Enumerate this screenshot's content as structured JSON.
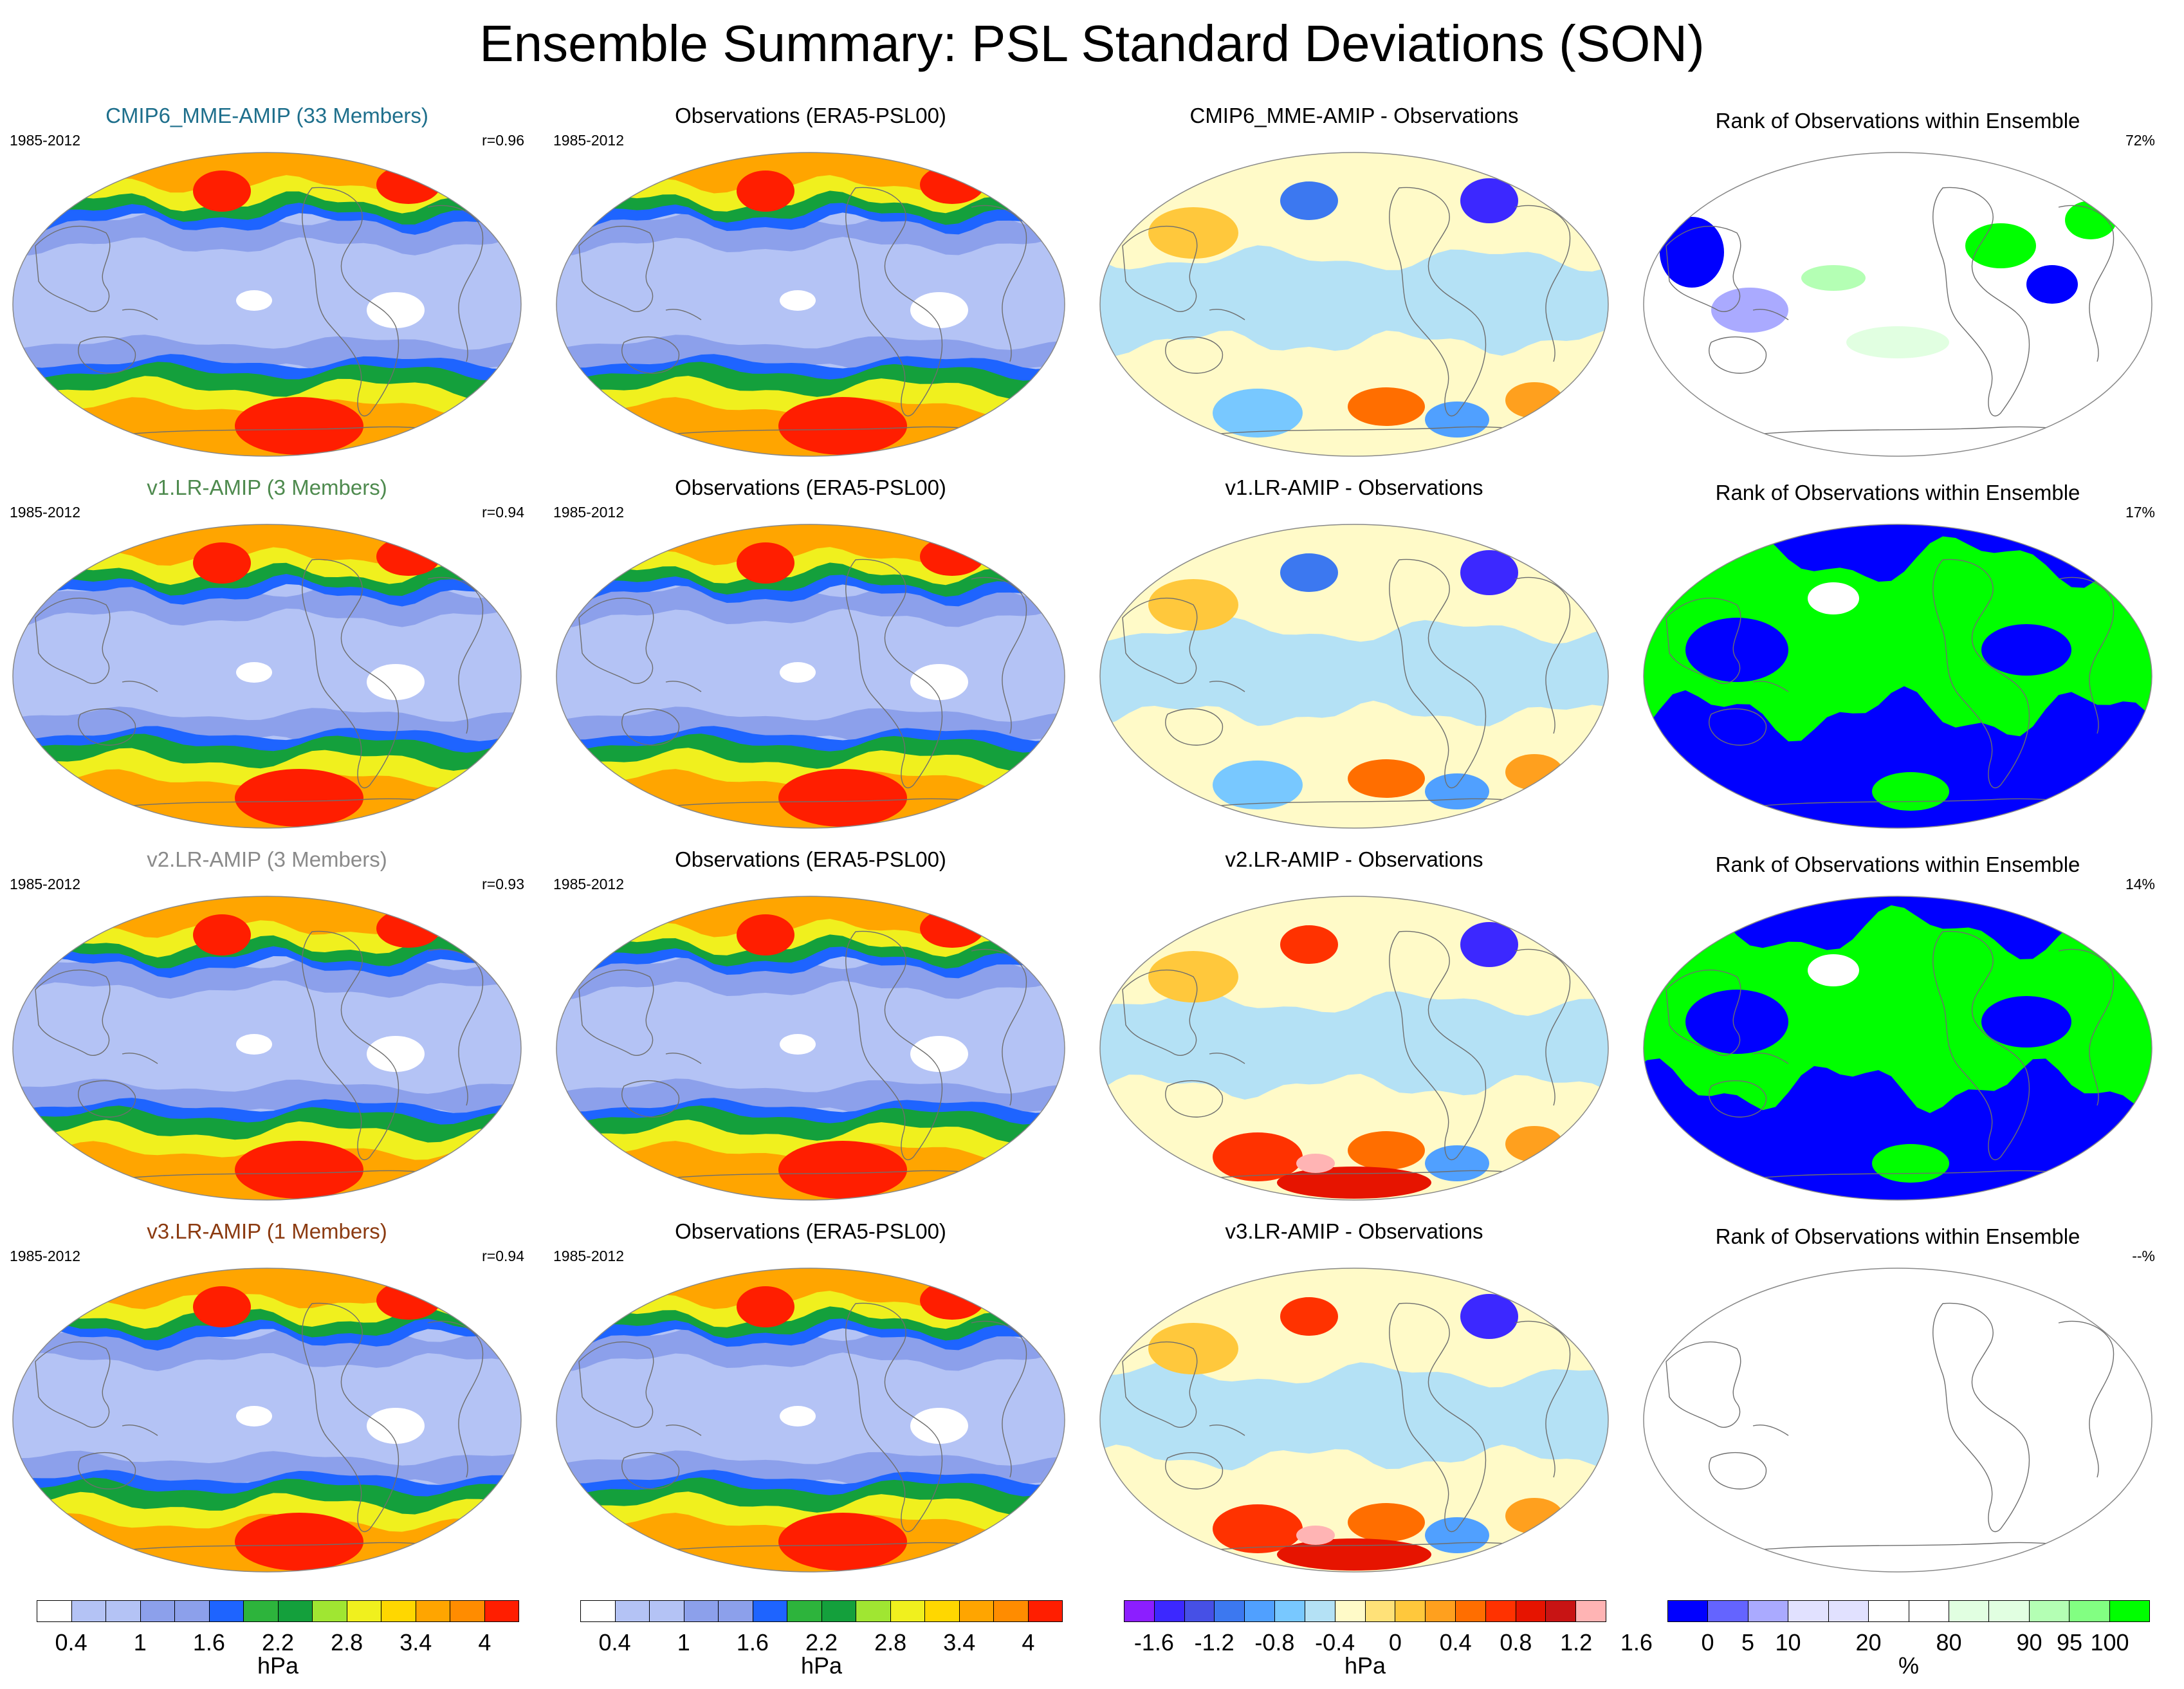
{
  "title": "Ensemble Summary: PSL Standard Deviations (SON)",
  "rows": [
    {
      "model": {
        "title": "CMIP6_MME-AMIP (33 Members)",
        "title_color": "#1e6f8c",
        "years": "1985-2012",
        "corr": "r=0.96"
      },
      "obs": {
        "title": "Observations (ERA5-PSL00)",
        "years": "1985-2012"
      },
      "diff": {
        "title": "CMIP6_MME-AMIP - Observations"
      },
      "rank": {
        "title": "Rank of Observations within Ensemble",
        "pct": "72%"
      }
    },
    {
      "model": {
        "title": "v1.LR-AMIP (3 Members)",
        "title_color": "#4e8a4e",
        "years": "1985-2012",
        "corr": "r=0.94"
      },
      "obs": {
        "title": "Observations (ERA5-PSL00)",
        "years": "1985-2012"
      },
      "diff": {
        "title": "v1.LR-AMIP - Observations"
      },
      "rank": {
        "title": "Rank of Observations within Ensemble",
        "pct": "17%"
      }
    },
    {
      "model": {
        "title": "v2.LR-AMIP (3 Members)",
        "title_color": "#8a8a8a",
        "years": "1985-2012",
        "corr": "r=0.93"
      },
      "obs": {
        "title": "Observations (ERA5-PSL00)",
        "years": "1985-2012"
      },
      "diff": {
        "title": "v2.LR-AMIP - Observations"
      },
      "rank": {
        "title": "Rank of Observations within Ensemble",
        "pct": "14%"
      }
    },
    {
      "model": {
        "title": "v3.LR-AMIP (1 Members)",
        "title_color": "#8b3a10",
        "years": "1985-2012",
        "corr": "r=0.94"
      },
      "obs": {
        "title": "Observations (ERA5-PSL00)",
        "years": "1985-2012"
      },
      "diff": {
        "title": "v3.LR-AMIP - Observations"
      },
      "rank": {
        "title": "Rank of Observations within Ensemble",
        "pct": "--%"
      }
    }
  ],
  "colorbars": {
    "stddev": {
      "colors": [
        "#ffffff",
        "#b4c3f5",
        "#b4c3f5",
        "#8ca0eb",
        "#8ca0eb",
        "#1e64ff",
        "#2db43c",
        "#14a03c",
        "#a0e632",
        "#f0f01e",
        "#ffd700",
        "#ffa500",
        "#ff8c00",
        "#ff1e00"
      ],
      "ticks": [
        "0.4",
        "1",
        "1.6",
        "2.2",
        "2.8",
        "3.4",
        "4"
      ],
      "unit": "hPa"
    },
    "diff": {
      "colors": [
        "#8c1eff",
        "#3c28ff",
        "#4650e6",
        "#3c78f0",
        "#50a0ff",
        "#78c8ff",
        "#b4e1f5",
        "#fffac8",
        "#ffe178",
        "#ffc83c",
        "#ffa01e",
        "#ff6e00",
        "#ff3200",
        "#e61400",
        "#c81414",
        "#ffb4b4"
      ],
      "ticks": [
        "-1.6",
        "-1.2",
        "-0.8",
        "-0.4",
        "0",
        "0.4",
        "0.8",
        "1.2",
        "1.6"
      ],
      "unit": "hPa"
    },
    "rank": {
      "colors": [
        "#0000ff",
        "#6464ff",
        "#aaaaff",
        "#e1e1ff",
        "#e1e1ff",
        "#ffffff",
        "#ffffff",
        "#e1ffe1",
        "#e1ffe1",
        "#b4ffb4",
        "#82ff82",
        "#00ff00"
      ],
      "ticks": [
        "0",
        "5",
        "10",
        "20",
        "80",
        "90",
        "95",
        "100"
      ],
      "unit": "%"
    }
  }
}
